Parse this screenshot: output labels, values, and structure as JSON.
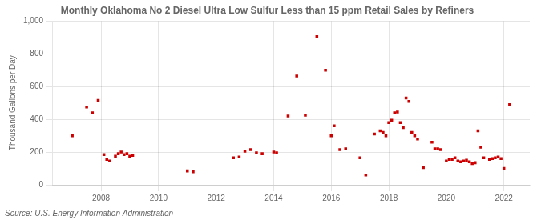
{
  "chart_data": {
    "type": "scatter",
    "title": "Monthly Oklahoma No 2 Diesel Ultra Low Sulfur Less than 15 ppm Retail Sales by Refiners",
    "ylabel": "Thousand Gallons per Day",
    "source": "Source: U.S. Energy Information Administration",
    "color": "#cc0000",
    "marker": "square",
    "grid": true,
    "xlim": [
      2006.3,
      2022.9
    ],
    "xticks": [
      2008,
      2010,
      2012,
      2014,
      2016,
      2018,
      2020,
      2022
    ],
    "ylim": [
      0,
      1000
    ],
    "yticks": [
      0,
      200,
      400,
      600,
      800,
      {
        "value": 1000,
        "label": "1,000"
      }
    ],
    "x": [
      2007.0,
      2007.5,
      2007.7,
      2007.9,
      2008.1,
      2008.2,
      2008.3,
      2008.5,
      2008.6,
      2008.7,
      2008.8,
      2008.9,
      2009.0,
      2009.1,
      2011.0,
      2011.2,
      2012.6,
      2012.8,
      2013.0,
      2013.2,
      2013.4,
      2013.6,
      2014.0,
      2014.1,
      2014.5,
      2014.8,
      2015.1,
      2015.5,
      2015.8,
      2016.0,
      2016.1,
      2016.3,
      2016.5,
      2017.0,
      2017.2,
      2017.5,
      2017.7,
      2017.8,
      2017.9,
      2018.0,
      2018.1,
      2018.2,
      2018.3,
      2018.4,
      2018.5,
      2018.6,
      2018.7,
      2018.8,
      2018.9,
      2019.0,
      2019.2,
      2019.5,
      2019.6,
      2019.7,
      2019.8,
      2020.0,
      2020.1,
      2020.2,
      2020.3,
      2020.4,
      2020.5,
      2020.6,
      2020.7,
      2020.8,
      2020.9,
      2021.0,
      2021.1,
      2021.2,
      2021.3,
      2021.5,
      2021.6,
      2021.7,
      2021.8,
      2021.9,
      2022.0,
      2022.2
    ],
    "values": [
      300,
      475,
      440,
      515,
      185,
      155,
      145,
      175,
      190,
      200,
      185,
      190,
      175,
      180,
      85,
      80,
      165,
      170,
      205,
      215,
      195,
      190,
      200,
      195,
      420,
      665,
      425,
      905,
      700,
      300,
      360,
      215,
      220,
      165,
      60,
      310,
      330,
      320,
      300,
      380,
      395,
      440,
      445,
      380,
      350,
      530,
      510,
      320,
      300,
      280,
      105,
      260,
      220,
      220,
      215,
      145,
      155,
      155,
      165,
      145,
      140,
      145,
      150,
      140,
      130,
      135,
      330,
      230,
      165,
      155,
      160,
      165,
      170,
      160,
      100,
      490
    ]
  }
}
